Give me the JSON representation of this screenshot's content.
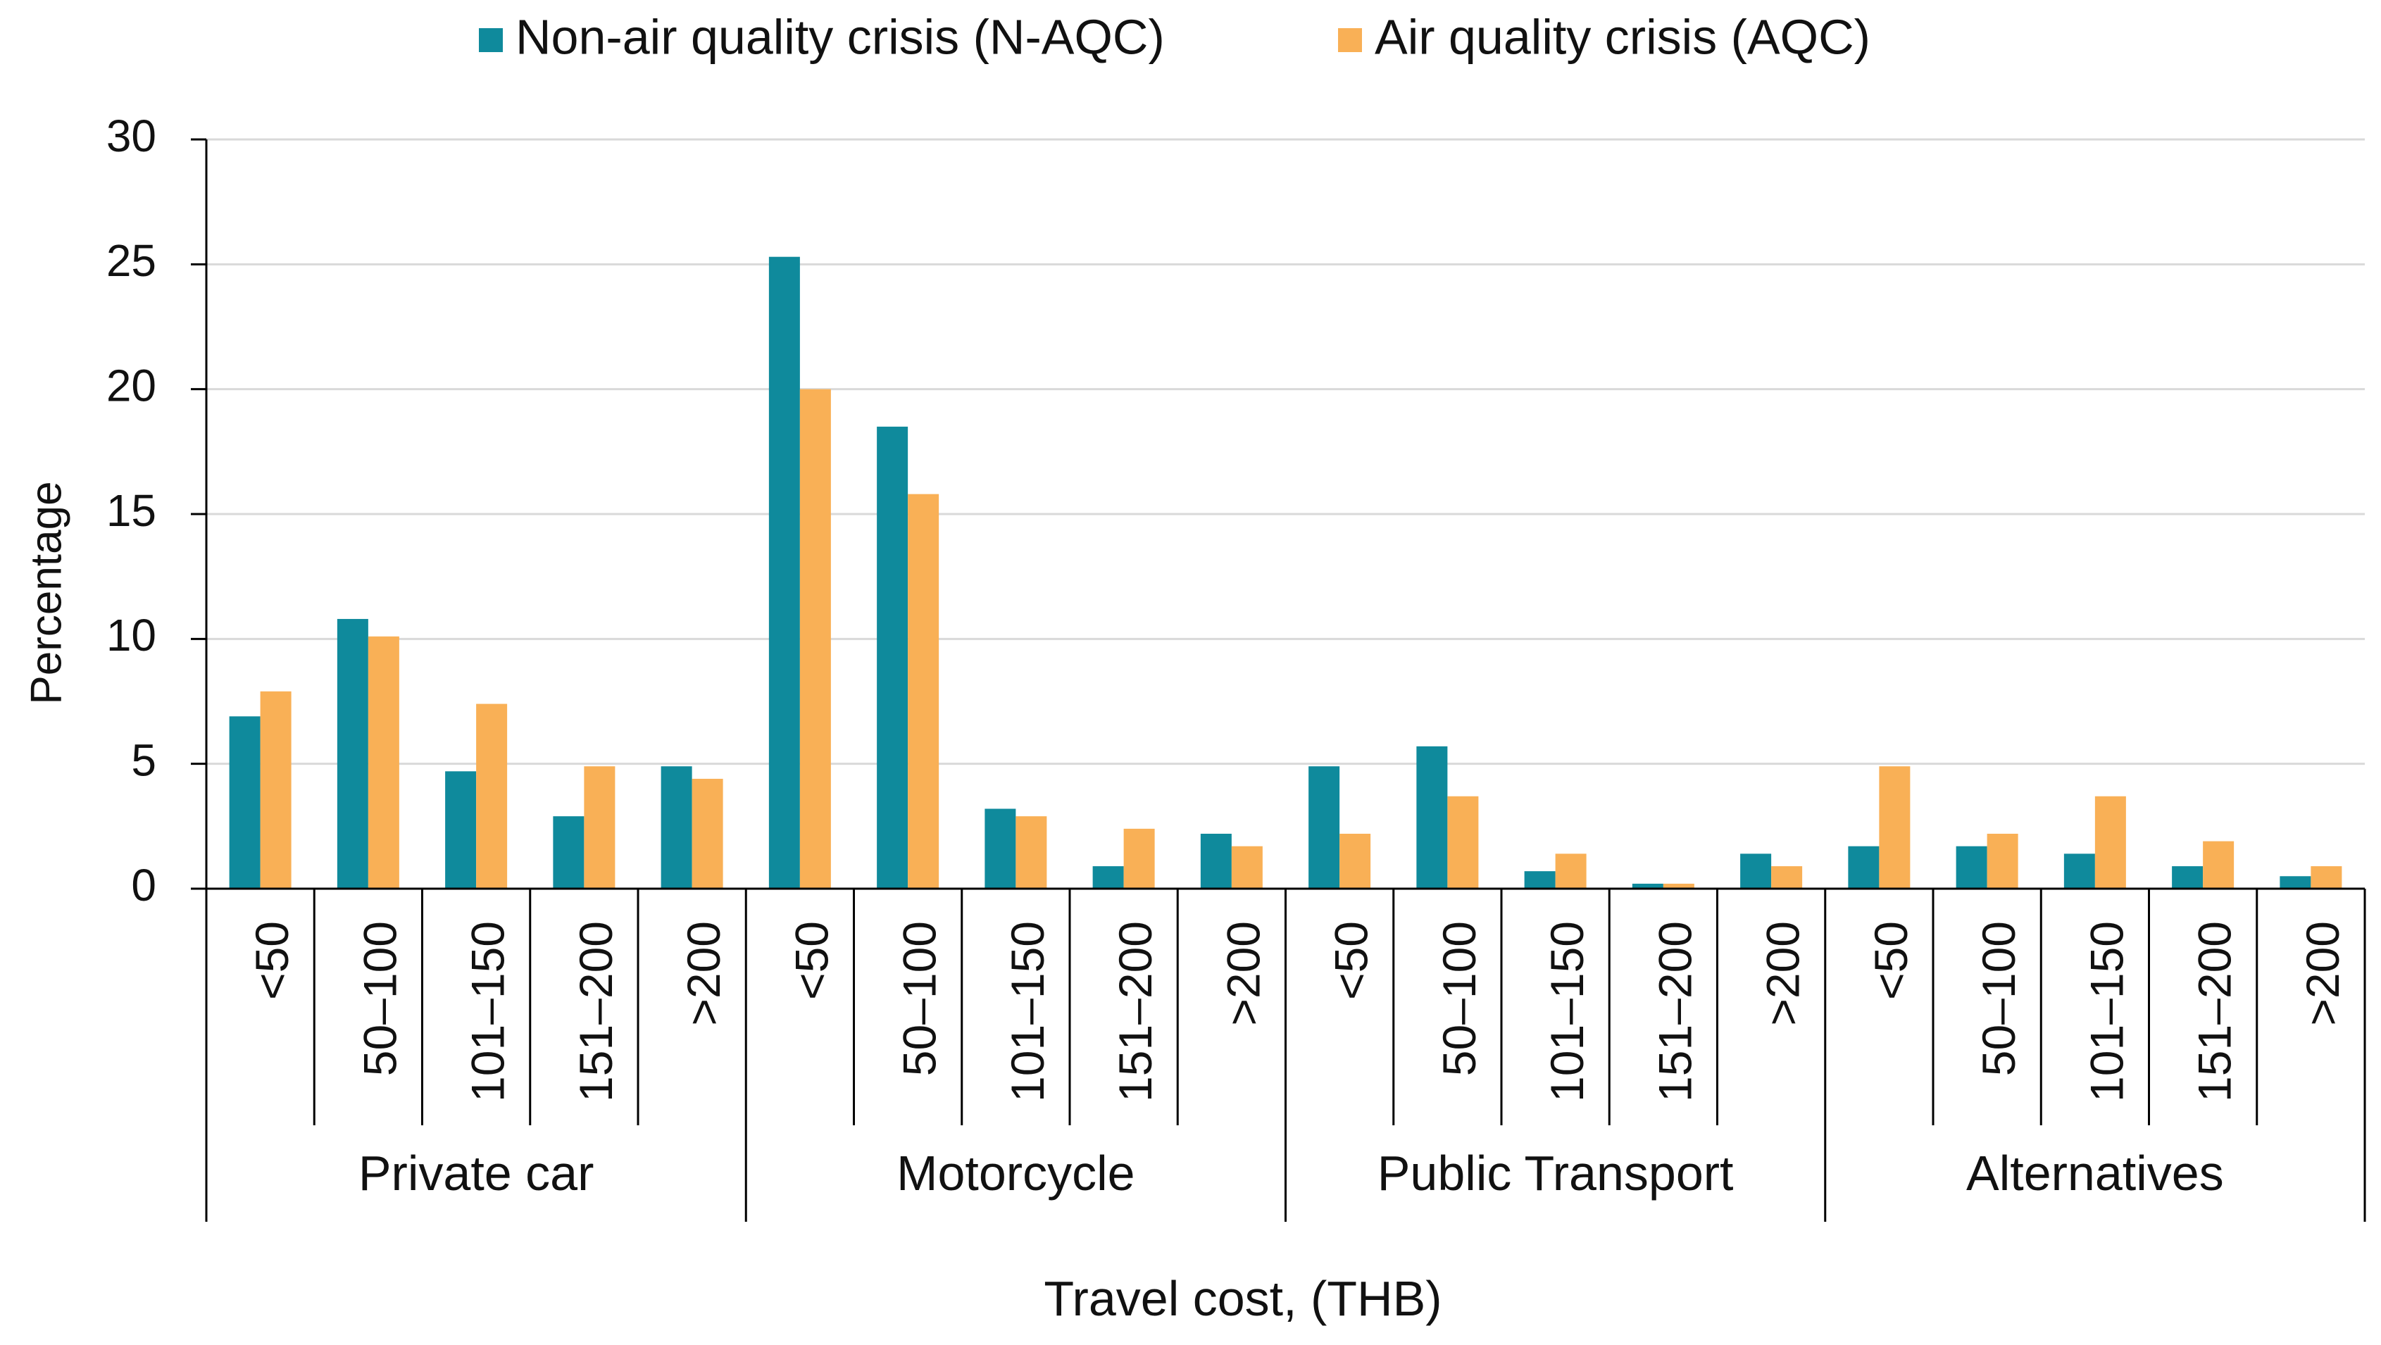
{
  "chart_data": {
    "type": "bar",
    "title": "",
    "xlabel": "Travel cost, (THB)",
    "ylabel": "Percentage",
    "ylim": [
      0,
      30
    ],
    "yticks": [
      0,
      5,
      10,
      15,
      20,
      25,
      30
    ],
    "grid": true,
    "legend_position": "top-center",
    "groups": [
      {
        "label": "Private car",
        "categories": [
          "<50",
          "50–100",
          "101–150",
          "151–200",
          ">200"
        ]
      },
      {
        "label": "Motorcycle",
        "categories": [
          "<50",
          "50–100",
          "101–150",
          "151–200",
          ">200"
        ]
      },
      {
        "label": "Public Transport",
        "categories": [
          "<50",
          "50–100",
          "101–150",
          "151–200",
          ">200"
        ]
      },
      {
        "label": "Alternatives",
        "categories": [
          "<50",
          "50–100",
          "101–150",
          "151–200",
          ">200"
        ]
      }
    ],
    "series": [
      {
        "name": "Non-air quality crisis (N-AQC)",
        "color": "#0f8a9c",
        "values": [
          6.9,
          10.8,
          4.7,
          2.9,
          4.9,
          25.3,
          18.5,
          3.2,
          0.9,
          2.2,
          4.9,
          5.7,
          0.7,
          0.2,
          1.4,
          1.7,
          1.7,
          1.4,
          0.9,
          0.5
        ]
      },
      {
        "name": "Air quality crisis (AQC)",
        "color": "#f9b056",
        "values": [
          7.9,
          10.1,
          7.4,
          4.9,
          4.4,
          20.0,
          15.8,
          2.9,
          2.4,
          1.7,
          2.2,
          3.7,
          1.4,
          0.2,
          0.9,
          4.9,
          2.2,
          3.7,
          1.9,
          0.9
        ]
      }
    ]
  }
}
